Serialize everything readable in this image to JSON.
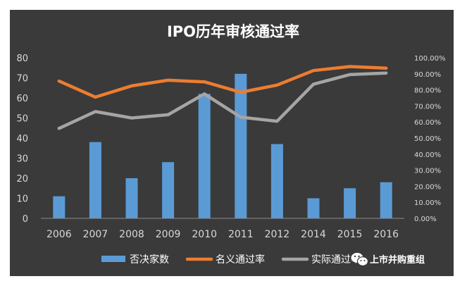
{
  "chart_data": {
    "type": "bar",
    "title": "IPO历年审核通过率",
    "categories": [
      "2006",
      "2007",
      "2008",
      "2009",
      "2010",
      "2011",
      "2012",
      "2014",
      "2015",
      "2016"
    ],
    "series": [
      {
        "name": "否决家数",
        "type": "bar",
        "axis": "left",
        "color": "#5b9bd5",
        "values": [
          11,
          38,
          20,
          28,
          62,
          72,
          37,
          10,
          15,
          18
        ]
      },
      {
        "name": "名义通过率",
        "type": "line",
        "axis": "right",
        "color": "#ed7d31",
        "values": [
          0.855,
          0.755,
          0.825,
          0.86,
          0.85,
          0.785,
          0.83,
          0.92,
          0.945,
          0.935
        ]
      },
      {
        "name": "实际通过率",
        "type": "line",
        "axis": "right",
        "color": "#a5a5a5",
        "values": [
          0.56,
          0.665,
          0.625,
          0.645,
          0.775,
          0.63,
          0.605,
          0.835,
          0.895,
          0.905
        ]
      }
    ],
    "y_left": {
      "min": 0,
      "max": 80,
      "ticks": [
        "0",
        "10",
        "20",
        "30",
        "40",
        "50",
        "60",
        "70",
        "80"
      ]
    },
    "y_right": {
      "min": 0,
      "max": 1,
      "ticks": [
        "0.00%",
        "10.00%",
        "20.00%",
        "30.00%",
        "40.00%",
        "50.00%",
        "60.00%",
        "70.00%",
        "80.00%",
        "90.00%",
        "100.00%"
      ]
    },
    "grid": false,
    "legend_position": "bottom"
  },
  "watermark": {
    "icon": "wechat-icon",
    "text": "上市并购重组"
  },
  "colors": {
    "background": "#3a3a3a",
    "axis_text": "#d9d9d9",
    "title": "#ffffff"
  }
}
